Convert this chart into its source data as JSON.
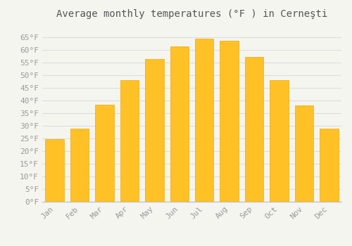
{
  "title": "Average monthly temperatures (°F ) in Cerneşti",
  "months": [
    "Jan",
    "Feb",
    "Mar",
    "Apr",
    "May",
    "Jun",
    "Jul",
    "Aug",
    "Sep",
    "Oct",
    "Nov",
    "Dec"
  ],
  "values": [
    24.8,
    28.9,
    38.3,
    48.0,
    56.5,
    61.5,
    64.4,
    63.7,
    57.2,
    48.0,
    38.1,
    28.9
  ],
  "bar_color_top": "#FFC125",
  "bar_color_bottom": "#F5A800",
  "bar_edge_color": "#F5A800",
  "background_color": "#F5F5F0",
  "grid_color": "#DDDDDD",
  "ylim": [
    0,
    70
  ],
  "yticks": [
    0,
    5,
    10,
    15,
    20,
    25,
    30,
    35,
    40,
    45,
    50,
    55,
    60,
    65
  ],
  "title_fontsize": 10,
  "tick_fontsize": 8,
  "tick_font_family": "monospace",
  "tick_color": "#999999",
  "title_color": "#555555"
}
